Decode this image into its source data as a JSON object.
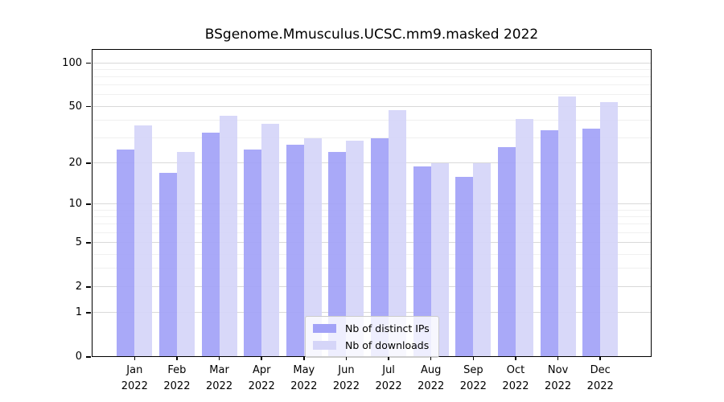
{
  "figure": {
    "background": "#ffffff",
    "axis_color": "#000000",
    "text_color": "#000000"
  },
  "chart_data": {
    "type": "bar",
    "title": "BSgenome.Mmusculus.UCSC.mm9.masked 2022",
    "categories": [
      "Jan",
      "Feb",
      "Mar",
      "Apr",
      "May",
      "Jun",
      "Jul",
      "Aug",
      "Sep",
      "Oct",
      "Nov",
      "Dec"
    ],
    "category_year": "2022",
    "series": [
      {
        "name": "Nb of distinct IPs",
        "color": "#a2a2f7",
        "values": [
          25,
          17,
          33,
          25,
          27,
          24,
          30,
          19,
          16,
          26,
          34,
          35
        ]
      },
      {
        "name": "Nb of downloads",
        "color": "#d5d5f8",
        "values": [
          37,
          24,
          43,
          38,
          30,
          29,
          47,
          20,
          20,
          41,
          59,
          54
        ]
      }
    ],
    "xlabel": "",
    "ylabel": "",
    "y_scale": "log1p",
    "y_axis": {
      "ticks": [
        0,
        1,
        2,
        5,
        10,
        20,
        50,
        100
      ],
      "minor_ticks": [
        3,
        4,
        6,
        7,
        8,
        9,
        30,
        40,
        60,
        70,
        80,
        90
      ],
      "max": 125
    },
    "grid": {
      "enabled": true,
      "major_color": "#d9d9d9",
      "minor_color": "#f0f0f0"
    },
    "legend": {
      "position": "bottom-center"
    }
  }
}
